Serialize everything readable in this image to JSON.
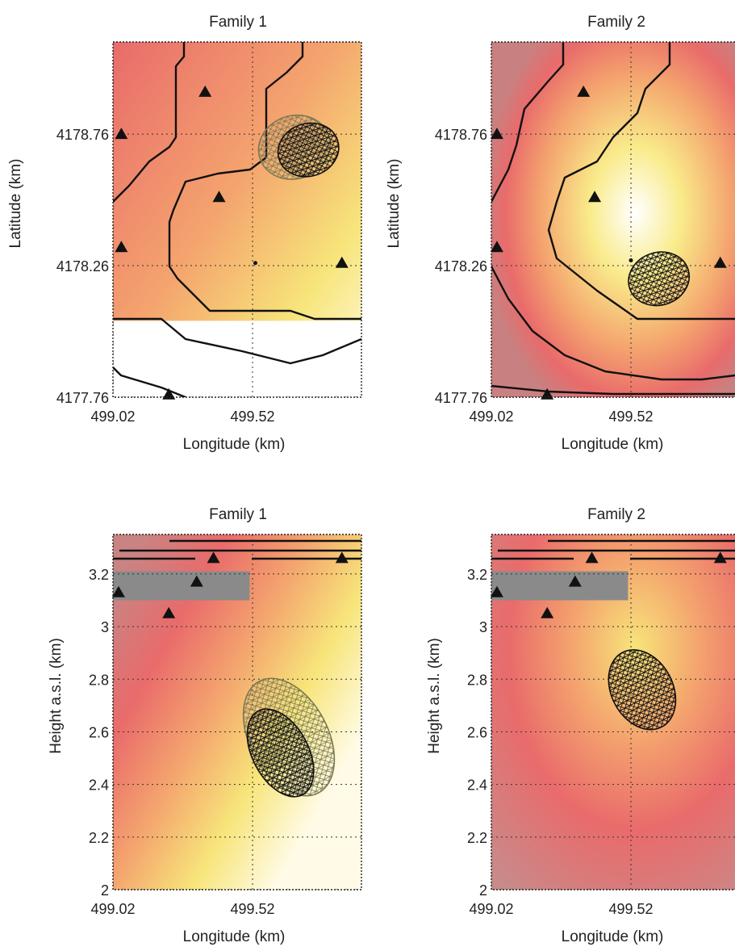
{
  "chart_data": [
    {
      "type": "heatmap",
      "title": "Family 1",
      "xlabel": "Longitude (km)",
      "ylabel": "Latitude (km)",
      "xticks": [
        "499.02",
        "499.52"
      ],
      "yticks": [
        "4177.76",
        "4178.26",
        "4178.76"
      ],
      "xlim": [
        499.02,
        499.91
      ],
      "ylim": [
        4177.76,
        4179.11
      ],
      "grid": true,
      "colormap": [
        "#808080",
        "#e96b6b",
        "#f4a46e",
        "#f7e57a",
        "#ffffff"
      ],
      "stations": [
        {
          "x": 499.05,
          "y": 4178.76
        },
        {
          "x": 499.05,
          "y": 4178.33
        },
        {
          "x": 499.35,
          "y": 4178.92
        },
        {
          "x": 499.4,
          "y": 4178.52
        },
        {
          "x": 499.84,
          "y": 4178.27
        },
        {
          "x": 499.22,
          "y": 4177.77
        }
      ],
      "source_marks": [
        {
          "x": 499.53,
          "y": 4178.27
        }
      ],
      "volumes": [
        {
          "label_color": "#7a7a55",
          "center": [
            499.67,
            4178.71
          ],
          "radius": [
            0.13,
            0.12
          ]
        },
        {
          "label_color": "#111111",
          "center": [
            499.72,
            4178.7
          ],
          "radius": [
            0.11,
            0.1
          ]
        }
      ]
    },
    {
      "type": "heatmap",
      "title": "Family 2",
      "xlabel": "Longitude (km)",
      "ylabel": "Latitude (km)",
      "xticks": [
        "499.02",
        "499.52"
      ],
      "yticks": [
        "4177.76",
        "4178.26",
        "4178.76"
      ],
      "xlim": [
        499.02,
        499.91
      ],
      "ylim": [
        4177.76,
        4179.11
      ],
      "grid": true,
      "colormap": [
        "#808080",
        "#e96b6b",
        "#f4a46e",
        "#f7e57a",
        "#ffffff"
      ],
      "stations": [
        {
          "x": 499.04,
          "y": 4178.76
        },
        {
          "x": 499.04,
          "y": 4178.33
        },
        {
          "x": 499.35,
          "y": 4178.92
        },
        {
          "x": 499.39,
          "y": 4178.52
        },
        {
          "x": 499.84,
          "y": 4178.27
        },
        {
          "x": 499.22,
          "y": 4177.77
        }
      ],
      "source_marks": [
        {
          "x": 499.52,
          "y": 4178.28
        }
      ],
      "volumes": [
        {
          "label_color": "#111111",
          "center": [
            499.62,
            4178.21
          ],
          "radius": [
            0.11,
            0.1
          ]
        }
      ]
    },
    {
      "type": "heatmap",
      "title": "Family 1",
      "xlabel": "Longitude (km)",
      "ylabel": "Height a.s.l. (km)",
      "xticks": [
        "499.02",
        "499.52"
      ],
      "yticks": [
        "2",
        "2.2",
        "2.4",
        "2.6",
        "2.8",
        "3",
        "3.2"
      ],
      "xlim": [
        499.02,
        499.91
      ],
      "ylim": [
        2.0,
        3.35
      ],
      "grid": true,
      "colormap": [
        "#808080",
        "#e96b6b",
        "#f4a46e",
        "#f7e57a",
        "#ffffff"
      ],
      "stations": [
        {
          "x": 499.04,
          "y": 3.13
        },
        {
          "x": 499.22,
          "y": 3.05
        },
        {
          "x": 499.32,
          "y": 3.17
        },
        {
          "x": 499.38,
          "y": 3.26
        },
        {
          "x": 499.84,
          "y": 3.26
        }
      ],
      "volumes": [
        {
          "label_color": "#7a7a55",
          "center": [
            499.65,
            2.58
          ],
          "radius": [
            0.14,
            0.24
          ]
        },
        {
          "label_color": "#111111",
          "center": [
            499.62,
            2.52
          ],
          "radius": [
            0.1,
            0.18
          ]
        }
      ]
    },
    {
      "type": "heatmap",
      "title": "Family 2",
      "xlabel": "Longitude (km)",
      "ylabel": "Height a.s.l. (km)",
      "xticks": [
        "499.02",
        "499.52"
      ],
      "yticks": [
        "2",
        "2.2",
        "2.4",
        "2.6",
        "2.8",
        "3",
        "3.2"
      ],
      "xlim": [
        499.02,
        499.91
      ],
      "ylim": [
        2.0,
        3.35
      ],
      "grid": true,
      "colormap": [
        "#808080",
        "#e96b6b",
        "#f4a46e",
        "#f7e57a",
        "#ffffff"
      ],
      "stations": [
        {
          "x": 499.04,
          "y": 3.13
        },
        {
          "x": 499.22,
          "y": 3.05
        },
        {
          "x": 499.32,
          "y": 3.17
        },
        {
          "x": 499.38,
          "y": 3.26
        },
        {
          "x": 499.84,
          "y": 3.26
        }
      ],
      "volumes": [
        {
          "label_color": "#111111",
          "center": [
            499.56,
            2.76
          ],
          "radius": [
            0.11,
            0.16
          ]
        }
      ]
    }
  ]
}
